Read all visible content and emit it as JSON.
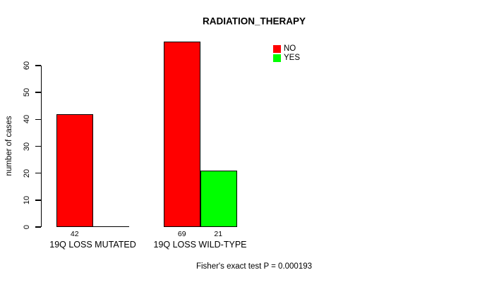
{
  "chart_data": {
    "type": "bar",
    "title": "RADIATION_THERAPY",
    "ylabel": "number of cases",
    "xlabel": "",
    "categories": [
      "19Q LOSS MUTATED",
      "19Q LOSS WILD-TYPE"
    ],
    "series": [
      {
        "name": "NO",
        "color": "#ff0000",
        "values": [
          42,
          69
        ]
      },
      {
        "name": "YES",
        "color": "#00ff00",
        "values": [
          0,
          21
        ]
      }
    ],
    "value_labels_shown": [
      "42",
      "69",
      "21"
    ],
    "ylim": [
      0,
      60
    ],
    "yticks": [
      0,
      10,
      20,
      30,
      40,
      50,
      60
    ],
    "grid": false,
    "legend": {
      "position": "top-right",
      "entries": [
        "NO",
        "YES"
      ]
    },
    "annotation": "Fisher's exact test P = 0.000193",
    "axis_color": "#000000",
    "background_color": "#ffffff"
  }
}
